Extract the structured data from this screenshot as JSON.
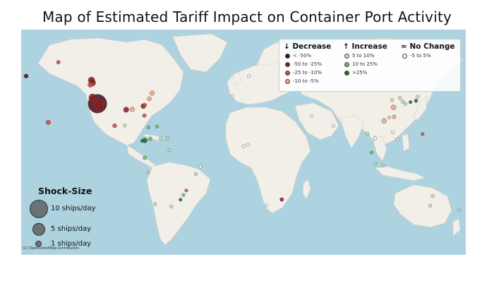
{
  "title": "Map of Estimated Tariff Impact on Container Port Activity",
  "legend": {
    "decrease": {
      "heading": "↓ Decrease",
      "items": [
        {
          "label": "< -50%",
          "color": "#4d0714"
        },
        {
          "label": "-50 to -25%",
          "color": "#8b1a1a"
        },
        {
          "label": "-25 to -10%",
          "color": "#cd4a3c"
        },
        {
          "label": "-10 to -5%",
          "color": "#f1a57f"
        }
      ]
    },
    "increase": {
      "heading": "↑ Increase",
      "items": [
        {
          "label": "5 to 10%",
          "color": "#c2e3b6"
        },
        {
          "label": "10 to 25%",
          "color": "#6abb6a"
        },
        {
          "label": ">25%",
          "color": "#1d6b2c"
        }
      ]
    },
    "no_change": {
      "heading": "≈ No Change",
      "items": [
        {
          "label": "-5 to 5%",
          "color": "#f5f5f5"
        }
      ]
    }
  },
  "size_legend": {
    "title": "Shock-Size",
    "items": [
      {
        "label": "10 ships/day"
      },
      {
        "label": "5 ships/day"
      },
      {
        "label": "1 ships/day"
      }
    ]
  },
  "attribution": "(C) OpenStreetMap contributors",
  "ports": [
    {
      "lon": -118.2,
      "lat": 33.7,
      "cls": 0,
      "ships": 10
    },
    {
      "lon": -122.3,
      "lat": 37.8,
      "cls": 1,
      "ships": 1.5
    },
    {
      "lon": -122.4,
      "lat": 47.6,
      "cls": 1,
      "ships": 1.3
    },
    {
      "lon": -123.1,
      "lat": 49.3,
      "cls": 1,
      "ships": 1.2
    },
    {
      "lon": -124.0,
      "lat": 46.2,
      "cls": 2,
      "ships": 0.7
    },
    {
      "lon": -149.9,
      "lat": 61.2,
      "cls": 2,
      "ships": 0.4
    },
    {
      "lon": -176.0,
      "lat": 52.0,
      "cls": 0,
      "ships": 0.5
    },
    {
      "lon": -158.0,
      "lat": 21.3,
      "cls": 2,
      "ships": 0.6
    },
    {
      "lon": -117.1,
      "lat": 32.7,
      "cls": 1,
      "ships": 2.5
    },
    {
      "lon": -95.0,
      "lat": 29.7,
      "cls": 1,
      "ships": 0.8
    },
    {
      "lon": -90.0,
      "lat": 29.9,
      "cls": 3,
      "ships": 0.6
    },
    {
      "lon": -81.1,
      "lat": 32.1,
      "cls": 1,
      "ships": 0.7
    },
    {
      "lon": -79.9,
      "lat": 32.8,
      "cls": 2,
      "ships": 0.4
    },
    {
      "lon": -76.3,
      "lat": 36.9,
      "cls": 3,
      "ships": 0.5
    },
    {
      "lon": -74.0,
      "lat": 40.7,
      "cls": 3,
      "ships": 0.6
    },
    {
      "lon": -80.2,
      "lat": 25.8,
      "cls": 2,
      "ships": 0.4
    },
    {
      "lon": -104.3,
      "lat": 19.1,
      "cls": 2,
      "ships": 0.5
    },
    {
      "lon": -96.1,
      "lat": 19.2,
      "cls": 4,
      "ships": 0.3
    },
    {
      "lon": -79.9,
      "lat": 9.3,
      "cls": 6,
      "ships": 0.7
    },
    {
      "lon": -75.5,
      "lat": 10.4,
      "cls": 5,
      "ships": 0.4
    },
    {
      "lon": -66.9,
      "lat": 10.5,
      "cls": 4,
      "ships": 0.3
    },
    {
      "lon": -61.5,
      "lat": 10.6,
      "cls": 4,
      "ships": 0.3
    },
    {
      "lon": -70.0,
      "lat": 18.5,
      "cls": 5,
      "ships": 0.3
    },
    {
      "lon": -77.0,
      "lat": 18.0,
      "cls": 5,
      "ships": 0.3
    },
    {
      "lon": -82.0,
      "lat": 9.0,
      "cls": 6,
      "ships": 0.3
    },
    {
      "lon": -79.9,
      "lat": -2.2,
      "cls": 5,
      "ships": 0.4
    },
    {
      "lon": -77.1,
      "lat": -12.0,
      "cls": 4,
      "ships": 0.3
    },
    {
      "lon": -71.6,
      "lat": -33.0,
      "cls": 4,
      "ships": 0.3
    },
    {
      "lon": -46.3,
      "lat": -23.9,
      "cls": 2,
      "ships": 0.3
    },
    {
      "lon": -48.6,
      "lat": -26.9,
      "cls": 5,
      "ships": 0.3
    },
    {
      "lon": -58.4,
      "lat": -34.6,
      "cls": 4,
      "ships": 0.3
    },
    {
      "lon": -38.5,
      "lat": -13.0,
      "cls": 4,
      "ships": 0.3
    },
    {
      "lon": -34.9,
      "lat": -8.1,
      "cls": 7,
      "ships": 0.3
    },
    {
      "lon": -51.0,
      "lat": -30.0,
      "cls": 6,
      "ships": 0.3
    },
    {
      "lon": -60.0,
      "lat": 3.0,
      "cls": 4,
      "ships": 0.25
    },
    {
      "lon": 31.0,
      "lat": -29.9,
      "cls": 1,
      "ships": 0.4
    },
    {
      "lon": 18.4,
      "lat": -33.9,
      "cls": 7,
      "ships": 0.25
    },
    {
      "lon": 121.5,
      "lat": 31.2,
      "cls": 3,
      "ships": 0.7
    },
    {
      "lon": 113.9,
      "lat": 22.3,
      "cls": 3,
      "ships": 0.6
    },
    {
      "lon": 122.0,
      "lat": 25.0,
      "cls": 3,
      "ships": 0.4
    },
    {
      "lon": 120.3,
      "lat": 36.1,
      "cls": 4,
      "ships": 0.3
    },
    {
      "lon": 129.0,
      "lat": 35.1,
      "cls": 4,
      "ships": 0.35
    },
    {
      "lon": 139.7,
      "lat": 35.6,
      "cls": 6,
      "ships": 0.35
    },
    {
      "lon": 135.2,
      "lat": 34.7,
      "cls": 6,
      "ships": 0.3
    },
    {
      "lon": 141.0,
      "lat": 38.3,
      "cls": 4,
      "ships": 0.3
    },
    {
      "lon": 118.0,
      "lat": 24.5,
      "cls": 4,
      "ships": 0.3
    },
    {
      "lon": 126.6,
      "lat": 37.5,
      "cls": 4,
      "ships": 0.3
    },
    {
      "lon": 131.0,
      "lat": 33.5,
      "cls": 4,
      "ships": 0.3
    },
    {
      "lon": 103.8,
      "lat": 1.3,
      "cls": 5,
      "ships": 0.3
    },
    {
      "lon": 106.7,
      "lat": 10.8,
      "cls": 7,
      "ships": 0.3
    },
    {
      "lon": 100.5,
      "lat": 13.7,
      "cls": 4,
      "ships": 0.25
    },
    {
      "lon": 120.9,
      "lat": 14.6,
      "cls": 7,
      "ships": 0.25
    },
    {
      "lon": 125.0,
      "lat": 10.0,
      "cls": 7,
      "ships": 0.25
    },
    {
      "lon": 145.0,
      "lat": 13.5,
      "cls": 2,
      "ships": 0.3
    },
    {
      "lon": 106.8,
      "lat": -6.1,
      "cls": 4,
      "ships": 0.25
    },
    {
      "lon": 112.7,
      "lat": -7.2,
      "cls": 4,
      "ships": 0.25
    },
    {
      "lon": 151.2,
      "lat": -33.9,
      "cls": 4,
      "ships": 0.25
    },
    {
      "lon": 153.1,
      "lat": -27.5,
      "cls": 4,
      "ships": 0.25
    },
    {
      "lon": 174.8,
      "lat": -36.8,
      "cls": 4,
      "ships": 0.25
    },
    {
      "lon": 4.4,
      "lat": 51.9,
      "cls": 7,
      "ships": 0.25
    },
    {
      "lon": -9.1,
      "lat": 38.7,
      "cls": 7,
      "ships": 0.25
    },
    {
      "lon": 0.0,
      "lat": 5.6,
      "cls": 7,
      "ships": 0.25
    },
    {
      "lon": 3.4,
      "lat": 6.4,
      "cls": 7,
      "ships": 0.25
    },
    {
      "lon": 55.3,
      "lat": 25.3,
      "cls": 7,
      "ships": 0.25
    },
    {
      "lon": 72.8,
      "lat": 19.0,
      "cls": 7,
      "ships": 0.25
    }
  ]
}
